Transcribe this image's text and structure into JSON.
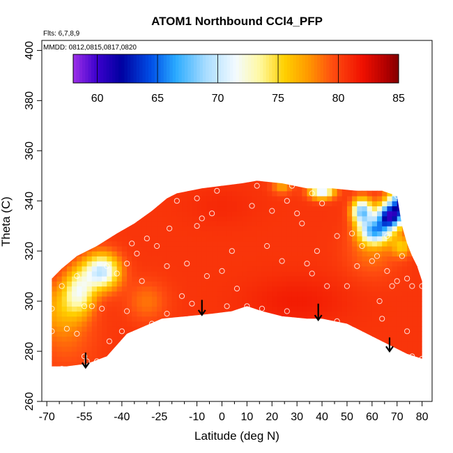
{
  "chart_data": {
    "type": "heatmap",
    "title": "ATOM1 Northbound CCl4_PFP",
    "annotations": [
      "Flts: 6,7,8,9",
      "MMDD: 0812,0815,0817,0820"
    ],
    "xlabel": "Latitude (deg N)",
    "ylabel": "Theta (C)",
    "xlim": [
      -72,
      84
    ],
    "ylim": [
      260,
      404
    ],
    "x_ticks": [
      -70,
      -55,
      -40,
      -25,
      -10,
      0,
      10,
      20,
      30,
      40,
      50,
      60,
      70,
      80
    ],
    "x_tick_labels": [
      "-70",
      "-55",
      "-40",
      "-25",
      "-10",
      "0",
      "10",
      "20",
      "30",
      "40",
      "50",
      "60",
      "70",
      "80"
    ],
    "x_minor_ticks": [
      -65,
      -60,
      -50,
      -45,
      -35,
      -30,
      -20,
      -15,
      -5,
      5,
      15,
      25,
      35,
      45,
      55,
      65,
      75
    ],
    "y_ticks": [
      260,
      280,
      300,
      320,
      340,
      360,
      380,
      400
    ],
    "y_tick_labels": [
      "260",
      "280",
      "300",
      "320",
      "340",
      "360",
      "380",
      "400"
    ],
    "colorbar": {
      "min": 58,
      "max": 85,
      "ticks": [
        60,
        65,
        70,
        75,
        80,
        85
      ],
      "tick_labels": [
        "60",
        "65",
        "70",
        "75",
        "80",
        "85"
      ],
      "stops": [
        {
          "v": 58,
          "c": "#9d2fe8"
        },
        {
          "v": 60,
          "c": "#3b00cc"
        },
        {
          "v": 62,
          "c": "#0000a0"
        },
        {
          "v": 64.5,
          "c": "#0050e8"
        },
        {
          "v": 66.5,
          "c": "#2aaaff"
        },
        {
          "v": 69,
          "c": "#a8dcff"
        },
        {
          "v": 71.5,
          "c": "#f4fbff"
        },
        {
          "v": 73.5,
          "c": "#fff8a0"
        },
        {
          "v": 75.5,
          "c": "#ffd000"
        },
        {
          "v": 77.5,
          "c": "#ff9900"
        },
        {
          "v": 79.5,
          "c": "#ff4e10"
        },
        {
          "v": 82,
          "c": "#f01000"
        },
        {
          "v": 84,
          "c": "#b00000"
        },
        {
          "v": 85,
          "c": "#800000"
        }
      ]
    },
    "field": {
      "background_value": 80.5,
      "anomalies": [
        {
          "lat": -48,
          "theta": 312,
          "value": 70,
          "slat": 7,
          "sth": 7
        },
        {
          "lat": -57,
          "theta": 304,
          "value": 73,
          "slat": 6,
          "sth": 9
        },
        {
          "lat": -65,
          "theta": 298,
          "value": 77.5,
          "slat": 8,
          "sth": 10
        },
        {
          "lat": -62,
          "theta": 286,
          "value": 79,
          "slat": 12,
          "sth": 14
        },
        {
          "lat": -30,
          "theta": 300,
          "value": 78.5,
          "slat": 8,
          "sth": 8
        },
        {
          "lat": 0,
          "theta": 338,
          "value": 81,
          "slat": 14,
          "sth": 8
        },
        {
          "lat": 30,
          "theta": 300,
          "value": 81.5,
          "slat": 20,
          "sth": 10
        },
        {
          "lat": 60,
          "theta": 320,
          "value": 78.5,
          "slat": 10,
          "sth": 10
        },
        {
          "lat": 74,
          "theta": 340,
          "value": 60,
          "slat": 6,
          "sth": 6
        },
        {
          "lat": 67,
          "theta": 334,
          "value": 63,
          "slat": 5,
          "sth": 5
        },
        {
          "lat": 61,
          "theta": 328,
          "value": 68,
          "slat": 6,
          "sth": 5
        },
        {
          "lat": 56,
          "theta": 336,
          "value": 68,
          "slat": 4,
          "sth": 5
        },
        {
          "lat": 40,
          "theta": 344,
          "value": 70,
          "slat": 5,
          "sth": 3
        },
        {
          "lat": 72,
          "theta": 322,
          "value": 76,
          "slat": 4,
          "sth": 4
        },
        {
          "lat": 24,
          "theta": 346,
          "value": 77,
          "slat": 4,
          "sth": 3
        }
      ],
      "upper_boundary": [
        [
          -68,
          309
        ],
        [
          -64,
          313
        ],
        [
          -58,
          318
        ],
        [
          -50,
          322
        ],
        [
          -42,
          327
        ],
        [
          -35,
          331
        ],
        [
          -28,
          336
        ],
        [
          -22,
          341
        ],
        [
          -18,
          343
        ],
        [
          -8,
          345
        ],
        [
          0,
          346
        ],
        [
          8,
          347
        ],
        [
          14,
          348
        ],
        [
          24,
          347
        ],
        [
          34,
          345
        ],
        [
          44,
          345
        ],
        [
          54,
          344
        ],
        [
          64,
          344
        ],
        [
          70,
          342
        ],
        [
          72,
          330
        ],
        [
          74,
          323
        ],
        [
          76,
          318
        ],
        [
          78,
          314
        ],
        [
          80,
          308
        ],
        [
          80,
          306
        ]
      ],
      "lower_boundary": [
        [
          80,
          277
        ],
        [
          74,
          279
        ],
        [
          62,
          285
        ],
        [
          50,
          291
        ],
        [
          40,
          293
        ],
        [
          34,
          293
        ],
        [
          24,
          294
        ],
        [
          16,
          296
        ],
        [
          10,
          298
        ],
        [
          4,
          296
        ],
        [
          -4,
          295
        ],
        [
          -14,
          294
        ],
        [
          -24,
          293
        ],
        [
          -38,
          287
        ],
        [
          -46,
          278
        ],
        [
          -54,
          275
        ],
        [
          -62,
          274
        ],
        [
          -68,
          274
        ],
        [
          -68,
          276
        ]
      ]
    },
    "sample_points": [
      [
        -68,
        297
      ],
      [
        -68,
        288
      ],
      [
        -62,
        289
      ],
      [
        -64,
        306
      ],
      [
        -58,
        310
      ],
      [
        -52,
        298
      ],
      [
        -48,
        297
      ],
      [
        -46,
        314
      ],
      [
        -42,
        311
      ],
      [
        -38,
        315
      ],
      [
        -40,
        288
      ],
      [
        -32,
        308
      ],
      [
        -28,
        291
      ],
      [
        -26,
        322
      ],
      [
        -22,
        314
      ],
      [
        -21,
        329
      ],
      [
        -18,
        340
      ],
      [
        -22,
        295
      ],
      [
        -14,
        315
      ],
      [
        -10,
        341
      ],
      [
        -8,
        333
      ],
      [
        -4,
        335
      ],
      [
        -6,
        310
      ],
      [
        -2,
        344
      ],
      [
        4,
        320
      ],
      [
        6,
        305
      ],
      [
        12,
        338
      ],
      [
        10,
        298
      ],
      [
        14,
        346
      ],
      [
        16,
        297
      ],
      [
        18,
        322
      ],
      [
        24,
        316
      ],
      [
        26,
        296
      ],
      [
        28,
        346
      ],
      [
        30,
        335
      ],
      [
        32,
        331
      ],
      [
        34,
        315
      ],
      [
        36,
        311
      ],
      [
        36,
        343
      ],
      [
        40,
        339
      ],
      [
        42,
        306
      ],
      [
        46,
        326
      ],
      [
        46,
        292
      ],
      [
        52,
        327
      ],
      [
        54,
        314
      ],
      [
        60,
        316
      ],
      [
        62,
        318
      ],
      [
        63,
        300
      ],
      [
        64,
        293
      ],
      [
        66,
        312
      ],
      [
        68,
        306
      ],
      [
        70,
        308
      ],
      [
        70,
        342
      ],
      [
        72,
        318
      ],
      [
        72,
        278
      ],
      [
        74,
        309
      ],
      [
        74,
        288
      ],
      [
        76,
        306
      ],
      [
        76,
        278
      ],
      [
        78,
        322
      ],
      [
        80,
        306
      ],
      [
        80,
        277
      ],
      [
        -55,
        298
      ],
      [
        -58,
        287
      ],
      [
        -50,
        276
      ],
      [
        -54,
        276
      ],
      [
        -45,
        284
      ],
      [
        -34,
        319
      ],
      [
        -36,
        323
      ],
      [
        -30,
        325
      ],
      [
        -38,
        296
      ],
      [
        -16,
        302
      ],
      [
        -10,
        330
      ],
      [
        0,
        312
      ],
      [
        20,
        336
      ],
      [
        26,
        340
      ],
      [
        38,
        320
      ],
      [
        50,
        306
      ],
      [
        56,
        322
      ],
      [
        66,
        326
      ],
      [
        -64,
        273
      ],
      [
        -55,
        278
      ],
      [
        -12,
        299
      ],
      [
        2,
        298
      ]
    ],
    "profile_arrows": [
      {
        "lat": -54.5,
        "theta_top": 279.5,
        "theta_bottom": 273.5
      },
      {
        "lat": -8,
        "theta_top": 300.5,
        "theta_bottom": 294.5
      },
      {
        "lat": 38.5,
        "theta_top": 299,
        "theta_bottom": 292.5
      },
      {
        "lat": 67,
        "theta_top": 285.5,
        "theta_bottom": 280
      }
    ]
  }
}
